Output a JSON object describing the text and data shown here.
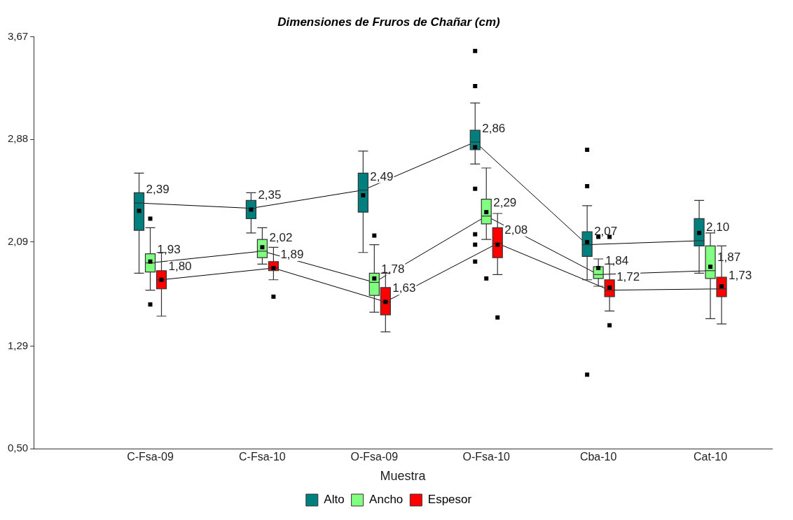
{
  "chart_data": {
    "type": "box",
    "title": "Dimensiones de Fruros de Chañar (cm)",
    "xlabel": "Muestra",
    "categories": [
      "C-Fsa-09",
      "C-Fsa-10",
      "O-Fsa-09",
      "O-Fsa-10",
      "Cba-10",
      "Cat-10"
    ],
    "ylim": [
      0.5,
      3.67
    ],
    "yticks": [
      {
        "value": 0.5,
        "label": "0,50"
      },
      {
        "value": 1.29,
        "label": "1,29"
      },
      {
        "value": 2.09,
        "label": "2,09"
      },
      {
        "value": 2.88,
        "label": "2,88"
      },
      {
        "value": 3.67,
        "label": "3,67"
      }
    ],
    "grid": false,
    "legend": "bottom",
    "series": [
      {
        "name": "Alto",
        "color": "#007f7f",
        "boxes": [
          {
            "low": 1.85,
            "q1": 2.18,
            "median": 2.39,
            "q3": 2.47,
            "high": 2.62,
            "mean": 2.33
          },
          {
            "low": 2.16,
            "q1": 2.27,
            "median": 2.35,
            "q3": 2.41,
            "high": 2.47,
            "mean": 2.34
          },
          {
            "low": 2.01,
            "q1": 2.32,
            "median": 2.49,
            "q3": 2.62,
            "high": 2.79,
            "mean": 2.45
          },
          {
            "low": 2.69,
            "q1": 2.8,
            "median": 2.86,
            "q3": 2.95,
            "high": 3.16,
            "mean": 2.82,
            "outliers": [
              3.56,
              3.29,
              2.5,
              2.15,
              2.07,
              1.94
            ]
          },
          {
            "low": 1.8,
            "q1": 1.98,
            "median": 2.07,
            "q3": 2.17,
            "high": 2.37,
            "mean": 2.09,
            "outliers": [
              2.8,
              2.52,
              1.07
            ]
          },
          {
            "low": 1.85,
            "q1": 2.06,
            "median": 2.1,
            "q3": 2.27,
            "high": 2.41,
            "mean": 2.16
          }
        ]
      },
      {
        "name": "Ancho",
        "color": "#80ff80",
        "boxes": [
          {
            "low": 1.72,
            "q1": 1.86,
            "median": 1.93,
            "q3": 2.0,
            "high": 2.2,
            "mean": 1.94,
            "outliers": [
              2.27,
              1.61
            ]
          },
          {
            "low": 1.92,
            "q1": 1.97,
            "median": 2.02,
            "q3": 2.11,
            "high": 2.2,
            "mean": 2.05
          },
          {
            "low": 1.55,
            "q1": 1.68,
            "median": 1.78,
            "q3": 1.85,
            "high": 2.07,
            "mean": 1.81,
            "outliers": [
              2.14
            ]
          },
          {
            "low": 2.11,
            "q1": 2.23,
            "median": 2.29,
            "q3": 2.42,
            "high": 2.66,
            "mean": 2.32,
            "outliers": [
              1.81
            ]
          },
          {
            "low": 1.75,
            "q1": 1.81,
            "median": 1.84,
            "q3": 1.9,
            "high": 1.96,
            "mean": 1.89,
            "outliers": [
              2.13
            ]
          },
          {
            "low": 1.5,
            "q1": 1.81,
            "median": 1.87,
            "q3": 2.06,
            "high": 2.16,
            "mean": 1.9
          }
        ]
      },
      {
        "name": "Espesor",
        "color": "#ff0000",
        "boxes": [
          {
            "low": 1.52,
            "q1": 1.73,
            "median": 1.8,
            "q3": 1.87,
            "high": 2.01,
            "mean": 1.8
          },
          {
            "low": 1.8,
            "q1": 1.87,
            "median": 1.89,
            "q3": 1.94,
            "high": 2.05,
            "mean": 1.89,
            "outliers": [
              1.67
            ]
          },
          {
            "low": 1.4,
            "q1": 1.53,
            "median": 1.63,
            "q3": 1.74,
            "high": 1.85,
            "mean": 1.63
          },
          {
            "low": 1.84,
            "q1": 1.97,
            "median": 2.08,
            "q3": 2.2,
            "high": 2.31,
            "mean": 2.07,
            "outliers": [
              1.51
            ]
          },
          {
            "low": 1.56,
            "q1": 1.67,
            "median": 1.72,
            "q3": 1.8,
            "high": 1.92,
            "mean": 1.74,
            "outliers": [
              2.13,
              1.45
            ]
          },
          {
            "low": 1.46,
            "q1": 1.67,
            "median": 1.73,
            "q3": 1.82,
            "high": 2.06,
            "mean": 1.75
          }
        ]
      }
    ],
    "annotations": [
      "2,39",
      "2,35",
      "2,49",
      "2,86",
      "2,07",
      "2,10",
      "1,93",
      "2,02",
      "1,78",
      "2,29",
      "1,84",
      "1,87",
      "1,80",
      "1,89",
      "1,63",
      "2,08",
      "1,72",
      "1,73"
    ]
  }
}
